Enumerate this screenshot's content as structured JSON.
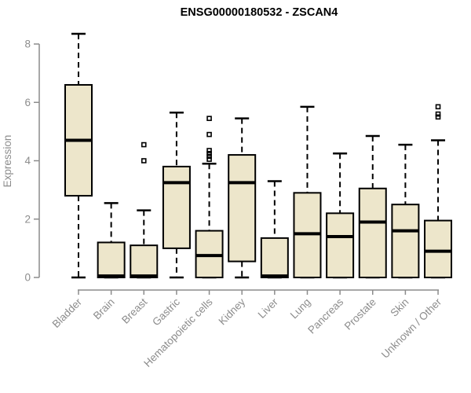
{
  "title": "ENSG00000180532 - ZSCAN4",
  "colors": {
    "box_fill": "#EDE6CB",
    "box_border": "#000000",
    "median": "#000000",
    "whisker": "#000000",
    "outlier": "#000000",
    "axis": "#8C8C8C",
    "tick_label": "#8C8C8C",
    "title": "#000000",
    "background": "#FFFFFF"
  },
  "chart_data": {
    "type": "boxplot",
    "title": "ENSG00000180532 - ZSCAN4",
    "xlabel": "",
    "ylabel": "Expression",
    "ylim": [
      0,
      8.5
    ],
    "yticks": [
      0,
      2,
      4,
      6,
      8
    ],
    "ytick_labels": [
      "0",
      "2",
      "4",
      "6",
      "8"
    ],
    "grid": false,
    "legend": null,
    "categories": [
      "Bladder",
      "Brain",
      "Breast",
      "Gastric",
      "Hematopoietic cells",
      "Kidney",
      "Liver",
      "Lung",
      "Pancreas",
      "Prostate",
      "Skin",
      "Unknown / Other"
    ],
    "series": [
      {
        "name": "Bladder",
        "whisker_low": 0,
        "q1": 2.8,
        "median": 4.7,
        "q3": 6.6,
        "whisker_high": 8.35,
        "outliers": []
      },
      {
        "name": "Brain",
        "whisker_low": 0,
        "q1": 0,
        "median": 0.05,
        "q3": 1.2,
        "whisker_high": 2.55,
        "outliers": []
      },
      {
        "name": "Breast",
        "whisker_low": 0,
        "q1": 0,
        "median": 0.05,
        "q3": 1.1,
        "whisker_high": 2.3,
        "outliers": [
          4.0,
          4.55
        ]
      },
      {
        "name": "Gastric",
        "whisker_low": 0,
        "q1": 1.0,
        "median": 3.25,
        "q3": 3.8,
        "whisker_high": 5.65,
        "outliers": []
      },
      {
        "name": "Hematopoietic cells",
        "whisker_low": 0,
        "q1": 0,
        "median": 0.75,
        "q3": 1.6,
        "whisker_high": 3.9,
        "outliers": [
          4.05,
          4.15,
          4.25,
          4.35,
          4.9,
          5.45
        ]
      },
      {
        "name": "Kidney",
        "whisker_low": 0,
        "q1": 0.55,
        "median": 3.25,
        "q3": 4.2,
        "whisker_high": 5.45,
        "outliers": []
      },
      {
        "name": "Liver",
        "whisker_low": 0,
        "q1": 0,
        "median": 0.05,
        "q3": 1.35,
        "whisker_high": 3.3,
        "outliers": []
      },
      {
        "name": "Lung",
        "whisker_low": 0,
        "q1": 0,
        "median": 1.5,
        "q3": 2.9,
        "whisker_high": 5.85,
        "outliers": []
      },
      {
        "name": "Pancreas",
        "whisker_low": 0,
        "q1": 0,
        "median": 1.4,
        "q3": 2.2,
        "whisker_high": 4.25,
        "outliers": []
      },
      {
        "name": "Prostate",
        "whisker_low": 0,
        "q1": 0,
        "median": 1.9,
        "q3": 3.05,
        "whisker_high": 4.85,
        "outliers": []
      },
      {
        "name": "Skin",
        "whisker_low": 0,
        "q1": 0,
        "median": 1.6,
        "q3": 2.5,
        "whisker_high": 4.55,
        "outliers": []
      },
      {
        "name": "Unknown / Other",
        "whisker_low": 0,
        "q1": 0,
        "median": 0.9,
        "q3": 1.95,
        "whisker_high": 4.7,
        "outliers": [
          5.5,
          5.6,
          5.85
        ]
      }
    ]
  }
}
